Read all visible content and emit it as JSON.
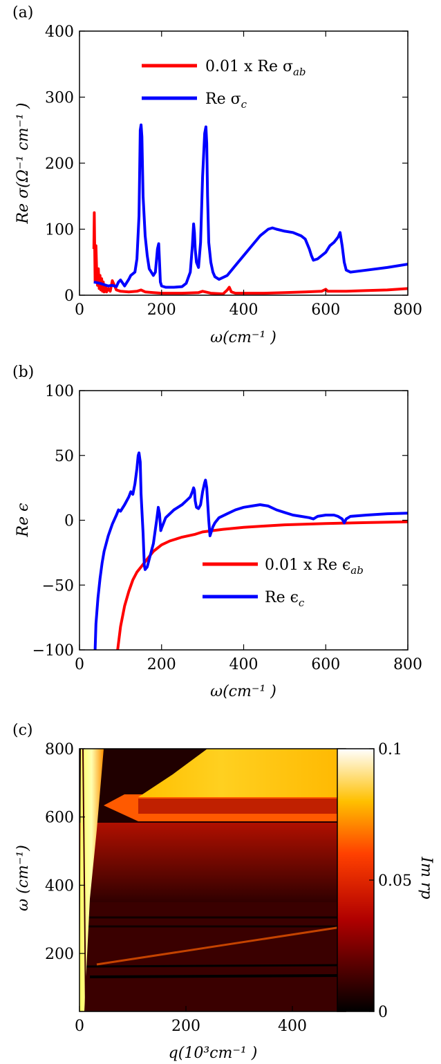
{
  "chart_data": [
    {
      "type": "line",
      "panel_label": "(a)",
      "xlabel": "ω(cm⁻¹ )",
      "ylabel": "Re σ(Ω⁻¹ cm⁻¹ )",
      "xlim": [
        0,
        800
      ],
      "ylim": [
        0,
        400
      ],
      "xticks": [
        "0",
        "200",
        "400",
        "600",
        "800"
      ],
      "yticks": [
        "0",
        "100",
        "200",
        "300",
        "400"
      ],
      "grid": false,
      "legend_position": "top-center",
      "series": [
        {
          "name": "0.01 x Re σab",
          "color": "#ff0000",
          "x": [
            35,
            36,
            38,
            40,
            42,
            44,
            46,
            48,
            50,
            52,
            54,
            56,
            58,
            60,
            63,
            66,
            70,
            75,
            80,
            90,
            100,
            120,
            140,
            150,
            160,
            180,
            200,
            250,
            290,
            300,
            320,
            350,
            360,
            365,
            370,
            380,
            400,
            450,
            500,
            550,
            590,
            600,
            605,
            650,
            700,
            750,
            800
          ],
          "y": [
            70,
            125,
            20,
            75,
            35,
            15,
            40,
            10,
            30,
            8,
            25,
            6,
            20,
            5,
            15,
            5,
            10,
            6,
            22,
            8,
            6,
            5,
            6,
            8,
            5,
            4,
            3,
            3,
            4,
            6,
            3,
            2,
            8,
            12,
            5,
            3,
            3,
            3,
            4,
            5,
            6,
            9,
            6,
            6,
            7,
            8,
            10
          ]
        },
        {
          "name": "Re σc",
          "color": "#0000ff",
          "x": [
            35,
            50,
            70,
            80,
            90,
            95,
            100,
            110,
            120,
            125,
            135,
            140,
            145,
            148,
            150,
            152,
            155,
            160,
            165,
            170,
            180,
            185,
            190,
            193,
            195,
            197,
            200,
            210,
            230,
            250,
            260,
            270,
            275,
            278,
            280,
            282,
            285,
            290,
            295,
            300,
            305,
            308,
            310,
            312,
            315,
            320,
            325,
            330,
            340,
            360,
            380,
            400,
            420,
            440,
            460,
            470,
            480,
            500,
            520,
            540,
            550,
            560,
            565,
            570,
            580,
            600,
            610,
            620,
            630,
            635,
            640,
            645,
            650,
            660,
            700,
            750,
            800
          ],
          "y": [
            20,
            18,
            14,
            15,
            13,
            20,
            23,
            14,
            24,
            30,
            35,
            55,
            120,
            250,
            258,
            240,
            150,
            90,
            60,
            40,
            30,
            35,
            70,
            78,
            50,
            20,
            14,
            12,
            12,
            13,
            18,
            35,
            75,
            108,
            95,
            70,
            50,
            42,
            80,
            180,
            245,
            255,
            230,
            150,
            80,
            50,
            35,
            28,
            24,
            30,
            45,
            60,
            75,
            90,
            100,
            102,
            100,
            97,
            95,
            90,
            85,
            70,
            60,
            53,
            55,
            65,
            75,
            80,
            88,
            95,
            75,
            50,
            38,
            35,
            38,
            42,
            47
          ]
        }
      ]
    },
    {
      "type": "line",
      "panel_label": "(b)",
      "xlabel": "ω(cm⁻¹ )",
      "ylabel": "Re ϵ",
      "xlim": [
        0,
        800
      ],
      "ylim": [
        -100,
        100
      ],
      "xticks": [
        "0",
        "200",
        "400",
        "600",
        "800"
      ],
      "yticks": [
        "−100",
        "−50",
        "0",
        "50",
        "100"
      ],
      "grid": false,
      "legend_position": "center-right",
      "series": [
        {
          "name": "0.01 x Re ϵab",
          "color": "#ff0000",
          "x": [
            93,
            100,
            110,
            120,
            130,
            140,
            150,
            160,
            170,
            180,
            200,
            220,
            250,
            280,
            300,
            350,
            400,
            450,
            500,
            600,
            700,
            800
          ],
          "y": [
            -100,
            -82,
            -66,
            -55,
            -46,
            -40,
            -36,
            -32,
            -28,
            -24,
            -19,
            -16,
            -13,
            -11,
            -9,
            -7,
            -5.5,
            -4.5,
            -3.5,
            -2.5,
            -1.8,
            -1.2
          ]
        },
        {
          "name": "Re ϵc",
          "color": "#0000ff",
          "x": [
            38,
            40,
            45,
            50,
            55,
            60,
            70,
            80,
            90,
            95,
            100,
            110,
            120,
            125,
            130,
            135,
            140,
            143,
            145,
            148,
            150,
            155,
            158,
            160,
            165,
            170,
            180,
            188,
            192,
            195,
            198,
            200,
            210,
            230,
            250,
            260,
            270,
            275,
            278,
            280,
            282,
            285,
            290,
            295,
            300,
            305,
            307,
            310,
            315,
            318,
            320,
            325,
            330,
            340,
            360,
            380,
            400,
            420,
            440,
            460,
            480,
            500,
            520,
            540,
            560,
            570,
            580,
            600,
            620,
            630,
            640,
            645,
            650,
            660,
            700,
            750,
            800
          ],
          "y": [
            -100,
            -80,
            -60,
            -45,
            -33,
            -24,
            -12,
            -3,
            4,
            8,
            7,
            12,
            18,
            22,
            20,
            28,
            40,
            50,
            52,
            45,
            20,
            -10,
            -35,
            -38,
            -36,
            -30,
            -18,
            0,
            10,
            5,
            -8,
            -6,
            2,
            8,
            12,
            15,
            18,
            22,
            25,
            23,
            15,
            10,
            9,
            12,
            22,
            29,
            31,
            25,
            0,
            -12,
            -10,
            -5,
            -2,
            2,
            5,
            8,
            10,
            11,
            12,
            11,
            8,
            6,
            4,
            3,
            2,
            1,
            3,
            4,
            4,
            3,
            1,
            -2,
            1,
            3,
            4,
            5,
            5.5
          ]
        }
      ]
    },
    {
      "type": "heatmap",
      "panel_label": "(c)",
      "xlabel": "q(10³cm⁻¹ )",
      "ylabel": "ω (cm⁻¹)",
      "colorbar_label": "Im rp",
      "xlim": [
        0,
        500
      ],
      "ylim": [
        30,
        800
      ],
      "xticks": [
        "0",
        "200",
        "400"
      ],
      "yticks": [
        "200",
        "400",
        "600",
        "800"
      ],
      "colorbar_range": [
        0,
        0.1
      ],
      "colorbar_ticks": [
        "0",
        "0.05",
        "0.1"
      ],
      "colormap": "hot",
      "features": [
        {
          "name": "bright light-line band near q≈0",
          "q_range": [
            0,
            40
          ],
          "omega_range": [
            30,
            800
          ],
          "level": 0.1
        },
        {
          "name": "upper band",
          "q_range": [
            180,
            500
          ],
          "omega_range": [
            640,
            800
          ],
          "level": 0.08
        },
        {
          "name": "band 565–640",
          "q_range": [
            130,
            500
          ],
          "omega_range": [
            565,
            640
          ],
          "level": 0.05
        },
        {
          "name": "broad 370–560 region",
          "q_range": [
            40,
            500
          ],
          "omega_range": [
            370,
            560
          ],
          "level": 0.02
        },
        {
          "name": "lower region",
          "q_range": [
            40,
            500
          ],
          "omega_range": [
            30,
            370
          ],
          "level": 0.01
        },
        {
          "name": "dark stripes",
          "omega_values": [
            150,
            195,
            280,
            315
          ],
          "level": 0.0
        }
      ]
    }
  ],
  "legend_labels": {
    "a_red_prefix": "0.01 x Re σ",
    "a_red_sub": "ab",
    "a_blue_prefix": "Re σ",
    "a_blue_sub": "c",
    "b_red_prefix": "0.01 x Re ϵ",
    "b_red_sub": "ab",
    "b_blue_prefix": "Re ϵ",
    "b_blue_sub": "c"
  }
}
